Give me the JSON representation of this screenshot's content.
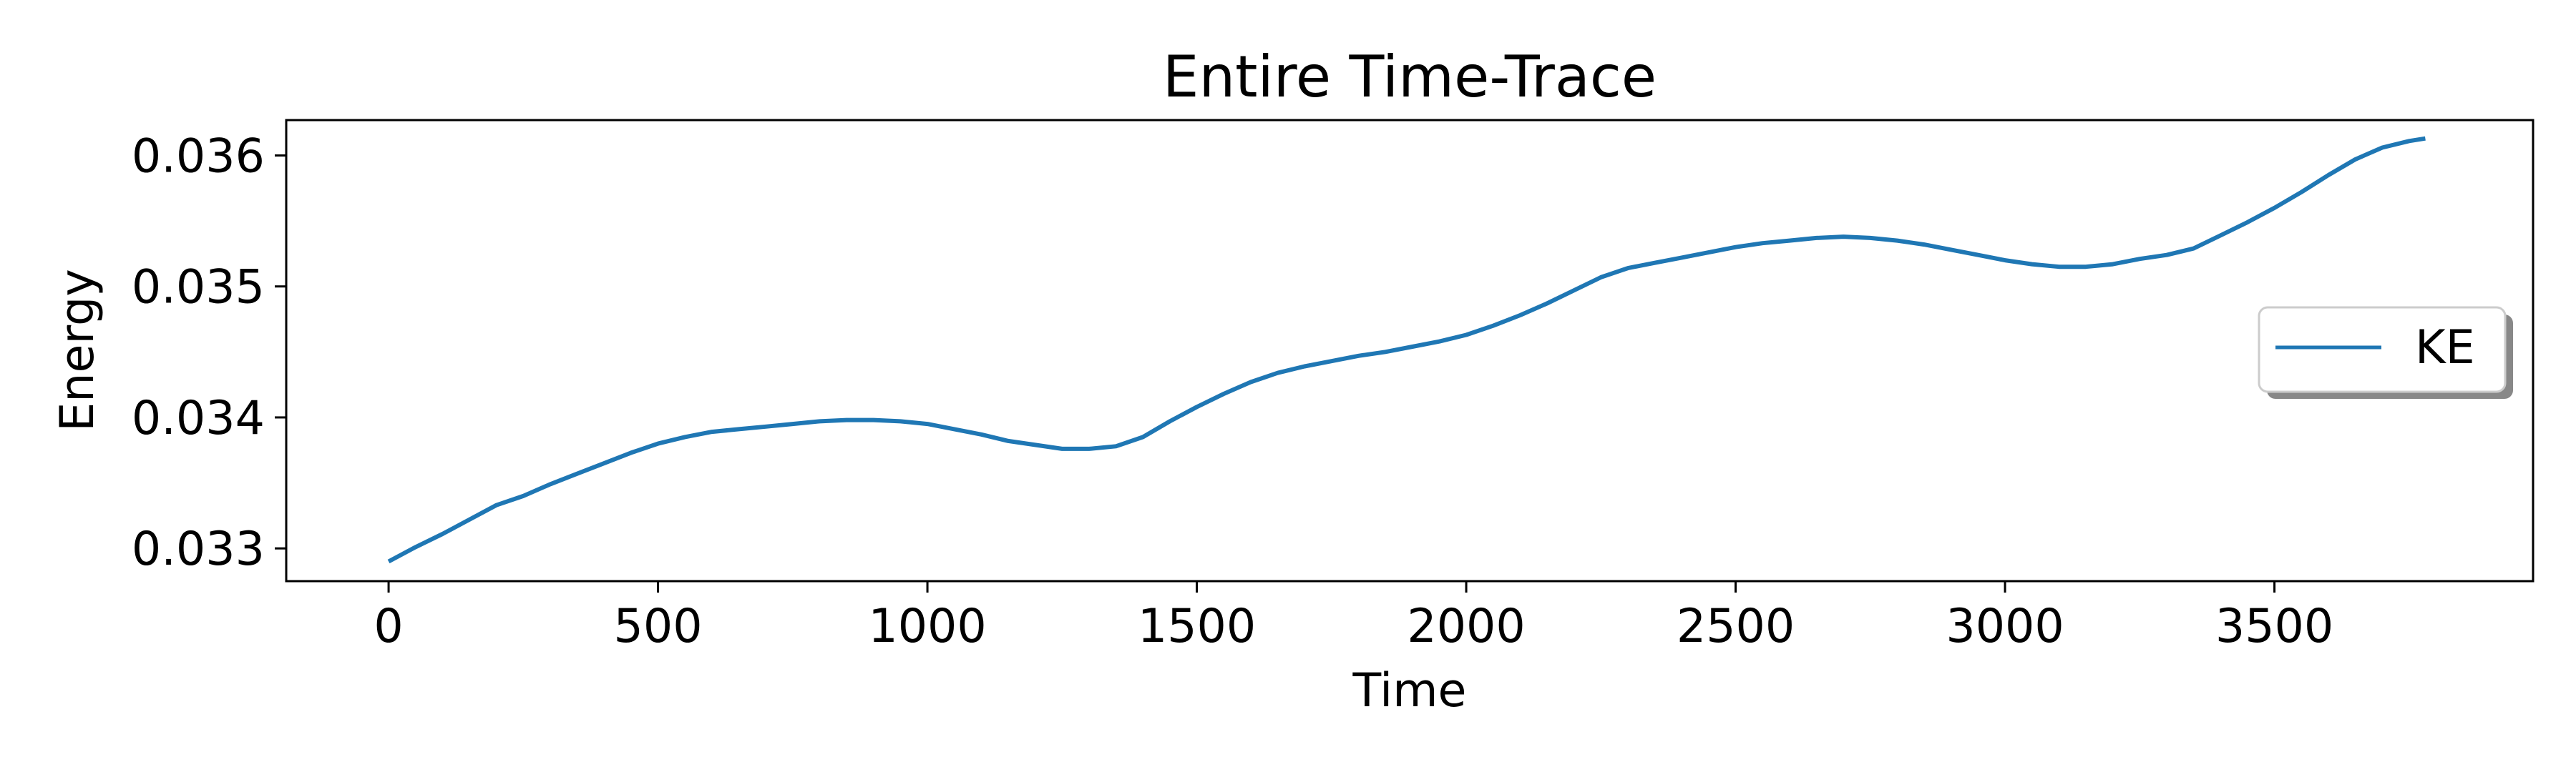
{
  "chart_data": {
    "type": "line",
    "title": "Entire Time-Trace",
    "xlabel": "Time",
    "ylabel": "Energy",
    "xlim": [
      -190,
      3980
    ],
    "ylim": [
      0.03275,
      0.03627
    ],
    "xticks": [
      0,
      500,
      1000,
      1500,
      2000,
      2500,
      3000,
      3500
    ],
    "xtick_labels": [
      "0",
      "500",
      "1000",
      "1500",
      "2000",
      "2500",
      "3000",
      "3500"
    ],
    "yticks": [
      0.033,
      0.034,
      0.035,
      0.036
    ],
    "ytick_labels": [
      "0.033",
      "0.034",
      "0.035",
      "0.036"
    ],
    "grid": false,
    "legend_position": "center-right",
    "series": [
      {
        "name": "KE",
        "color": "#1f77b4",
        "x": [
          0,
          50,
          100,
          150,
          200,
          250,
          300,
          350,
          400,
          450,
          500,
          550,
          600,
          650,
          700,
          750,
          800,
          850,
          900,
          950,
          1000,
          1050,
          1100,
          1150,
          1200,
          1250,
          1300,
          1350,
          1400,
          1450,
          1500,
          1550,
          1600,
          1650,
          1700,
          1750,
          1800,
          1850,
          1900,
          1950,
          2000,
          2050,
          2100,
          2150,
          2200,
          2250,
          2300,
          2350,
          2400,
          2450,
          2500,
          2550,
          2600,
          2650,
          2700,
          2750,
          2800,
          2850,
          2900,
          2950,
          3000,
          3050,
          3100,
          3150,
          3200,
          3250,
          3300,
          3350,
          3400,
          3450,
          3500,
          3550,
          3600,
          3650,
          3700,
          3750,
          3780
        ],
        "y": [
          0.0329,
          0.03301,
          0.03311,
          0.03322,
          0.03333,
          0.0334,
          0.03349,
          0.03357,
          0.03365,
          0.03373,
          0.0338,
          0.03385,
          0.03389,
          0.03391,
          0.03393,
          0.03395,
          0.03397,
          0.03398,
          0.03398,
          0.03397,
          0.03395,
          0.03391,
          0.03387,
          0.03382,
          0.03379,
          0.03376,
          0.03376,
          0.03378,
          0.03385,
          0.03397,
          0.03408,
          0.03418,
          0.03427,
          0.03434,
          0.03439,
          0.03443,
          0.03447,
          0.0345,
          0.03454,
          0.03458,
          0.03463,
          0.0347,
          0.03478,
          0.03487,
          0.03497,
          0.03507,
          0.03514,
          0.03518,
          0.03522,
          0.03526,
          0.0353,
          0.03533,
          0.03535,
          0.03537,
          0.03538,
          0.03537,
          0.03535,
          0.03532,
          0.03528,
          0.03524,
          0.0352,
          0.03517,
          0.03515,
          0.03515,
          0.03517,
          0.03521,
          0.03524,
          0.03529,
          0.03539,
          0.03549,
          0.0356,
          0.03572,
          0.03585,
          0.03597,
          0.03606,
          0.03611,
          0.03613
        ]
      }
    ]
  }
}
